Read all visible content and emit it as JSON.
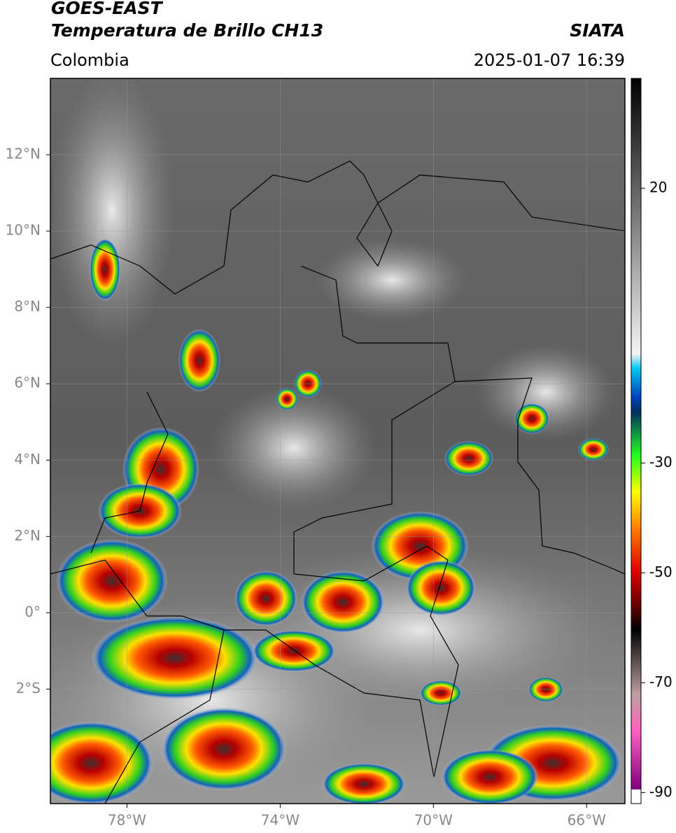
{
  "header": {
    "title": "GOES-EAST",
    "subtitle": "Temperatura de Brillo CH13",
    "region": "Colombia",
    "source": "SIATA",
    "datetime": "2025-01-07 16:39"
  },
  "map": {
    "lonlim": [
      -80,
      -65
    ],
    "latlim": [
      -5,
      14
    ],
    "lonticks": [
      {
        "value": -78,
        "label": "78°W"
      },
      {
        "value": -74,
        "label": "74°W"
      },
      {
        "value": -70,
        "label": "70°W"
      },
      {
        "value": -66,
        "label": "66°W"
      }
    ],
    "latticks": [
      {
        "value": 12,
        "label": "12°N"
      },
      {
        "value": 10,
        "label": "10°N"
      },
      {
        "value": 8,
        "label": "8°N"
      },
      {
        "value": 6,
        "label": "6°N"
      },
      {
        "value": 4,
        "label": "4°N"
      },
      {
        "value": 2,
        "label": "2°N"
      },
      {
        "value": 0,
        "label": "0°"
      },
      {
        "value": -2,
        "label": "2°S"
      }
    ],
    "grid": true
  },
  "colorbar": {
    "clim": [
      -92,
      40
    ],
    "ticks": [
      20,
      -30,
      -50,
      -70,
      -90
    ]
  }
}
